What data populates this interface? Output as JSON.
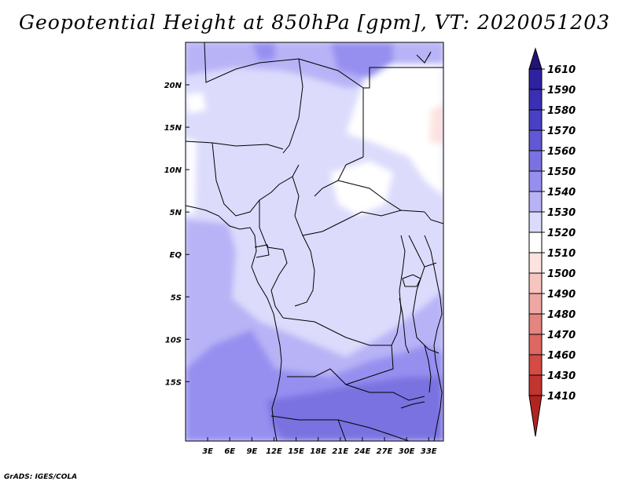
{
  "title": "Geopotential Height at 850hPa [gpm], VT: 2020051203",
  "credit": "GrADS: IGES/COLA",
  "map": {
    "lon_range": [
      0,
      35
    ],
    "lat_range": [
      -22,
      25
    ],
    "x_ticks": [
      {
        "value": 3,
        "label": "3E"
      },
      {
        "value": 6,
        "label": "6E"
      },
      {
        "value": 9,
        "label": "9E"
      },
      {
        "value": 12,
        "label": "12E"
      },
      {
        "value": 15,
        "label": "15E"
      },
      {
        "value": 18,
        "label": "18E"
      },
      {
        "value": 21,
        "label": "21E"
      },
      {
        "value": 24,
        "label": "24E"
      },
      {
        "value": 27,
        "label": "27E"
      },
      {
        "value": 30,
        "label": "30E"
      },
      {
        "value": 33,
        "label": "33E"
      }
    ],
    "y_ticks": [
      {
        "value": 20,
        "label": "20N"
      },
      {
        "value": 15,
        "label": "15N"
      },
      {
        "value": 10,
        "label": "10N"
      },
      {
        "value": 5,
        "label": "5N"
      },
      {
        "value": 0,
        "label": "EQ"
      },
      {
        "value": -5,
        "label": "5S"
      },
      {
        "value": -10,
        "label": "10S"
      },
      {
        "value": -15,
        "label": "15S"
      }
    ]
  },
  "colorbar": {
    "levels": [
      {
        "label": "1610",
        "color": "#28198c"
      },
      {
        "label": "1590",
        "color": "#2e22a0"
      },
      {
        "label": "1580",
        "color": "#3a30b4"
      },
      {
        "label": "1570",
        "color": "#4a40c6"
      },
      {
        "label": "1560",
        "color": "#6058d4"
      },
      {
        "label": "1550",
        "color": "#7a72e0"
      },
      {
        "label": "1540",
        "color": "#968ff0"
      },
      {
        "label": "1530",
        "color": "#b8b3f6"
      },
      {
        "label": "1520",
        "color": "#dcdbfc"
      },
      {
        "label": "1510",
        "color": "#ffffff"
      },
      {
        "label": "1500",
        "color": "#fde3e0"
      },
      {
        "label": "1490",
        "color": "#f7c4c0"
      },
      {
        "label": "1480",
        "color": "#eea7a3"
      },
      {
        "label": "1470",
        "color": "#e4857f"
      },
      {
        "label": "1460",
        "color": "#dd6761"
      },
      {
        "label": "1430",
        "color": "#d44a44"
      },
      {
        "label": "1410",
        "color": "#c23430"
      }
    ],
    "top_color": "#201478",
    "bottom_color": "#b22420"
  }
}
